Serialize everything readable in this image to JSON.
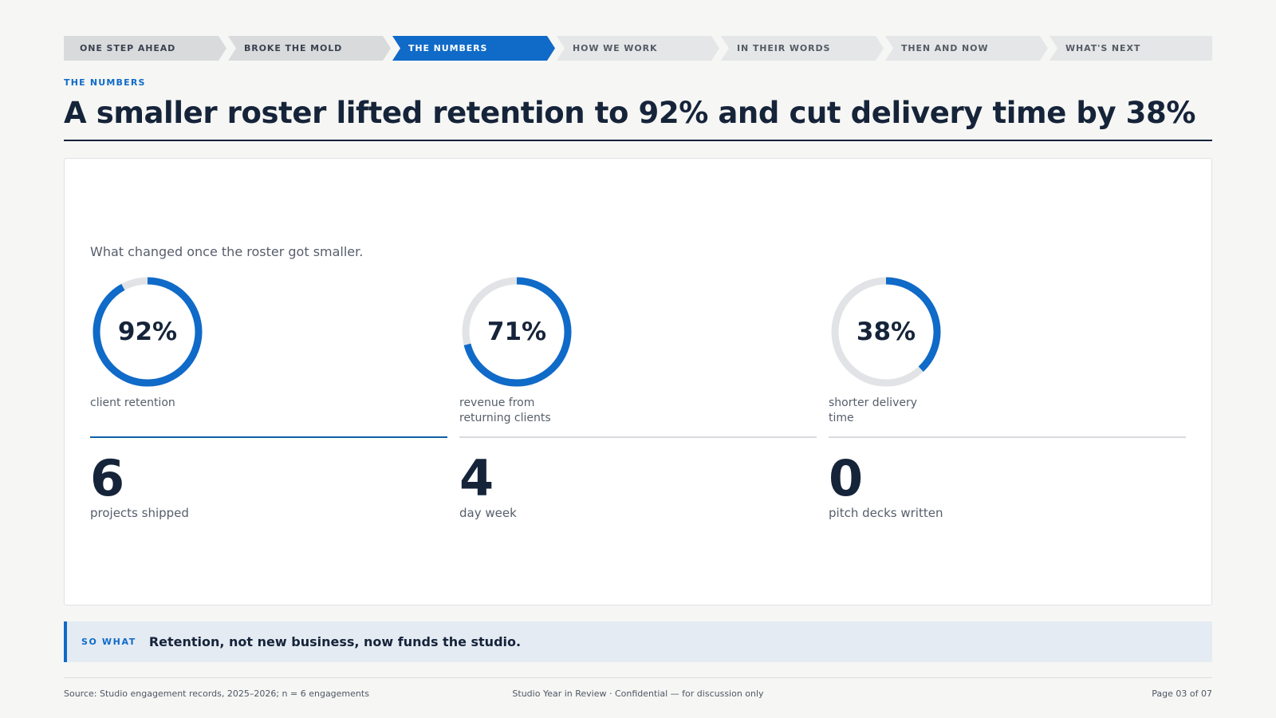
{
  "nav": {
    "steps": [
      {
        "label": "ONE STEP AHEAD",
        "state": "done"
      },
      {
        "label": "BROKE THE MOLD",
        "state": "done"
      },
      {
        "label": "THE NUMBERS",
        "state": "active"
      },
      {
        "label": "HOW WE WORK",
        "state": "upcoming"
      },
      {
        "label": "IN THEIR WORDS",
        "state": "upcoming"
      },
      {
        "label": "THEN AND NOW",
        "state": "upcoming"
      },
      {
        "label": "WHAT'S NEXT",
        "state": "upcoming"
      }
    ]
  },
  "header": {
    "eyebrow": "THE NUMBERS",
    "title": "A smaller roster lifted retention to 92% and cut delivery time by 38%"
  },
  "card": {
    "intro": "What changed once the roster got smaller.",
    "metrics": [
      {
        "value_text": "92%",
        "fraction": 0.92,
        "label": "client retention",
        "number": "6",
        "number_label": "projects shipped"
      },
      {
        "value_text": "71%",
        "fraction": 0.71,
        "label": "revenue from returning clients",
        "number": "4",
        "number_label": "day week"
      },
      {
        "value_text": "38%",
        "fraction": 0.38,
        "label": "shorter delivery time",
        "number": "0",
        "number_label": "pitch decks written"
      }
    ]
  },
  "so_what": {
    "tag": "SO WHAT",
    "text": "Retention, not new business, now funds the studio."
  },
  "footer": {
    "source": "Source: Studio engagement records, 2025–2026; n = 6 engagements",
    "center": "Studio Year in Review · Confidential — for discussion only",
    "page": "Page 03 of 07"
  },
  "colors": {
    "accent": "#0f6ac8",
    "track": "#e2e3e6",
    "ink": "#16243a"
  }
}
